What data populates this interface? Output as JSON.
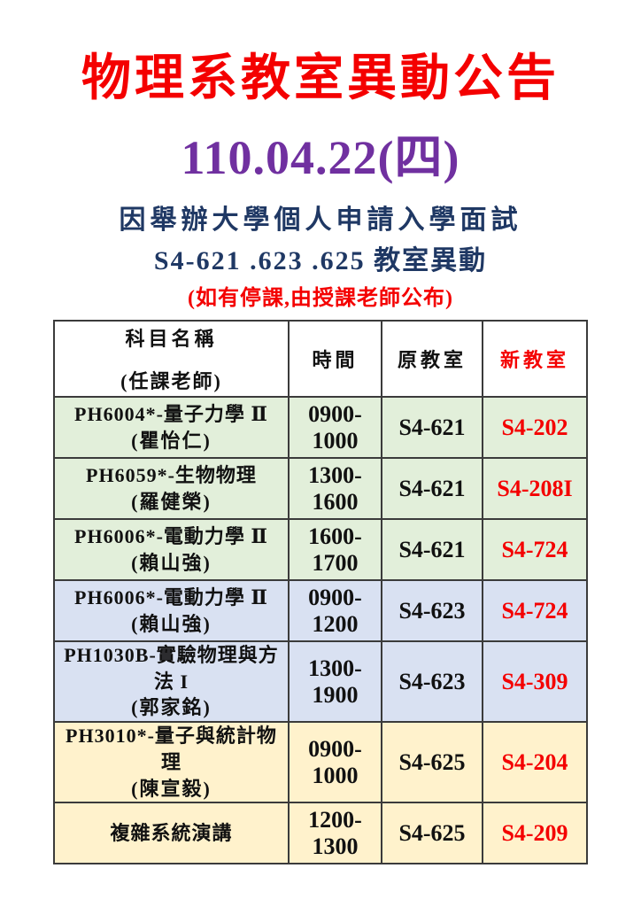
{
  "page": {
    "title": "物理系教室異動公告",
    "date": "110.04.22(四)",
    "subtitle_line1": "因舉辦大學個人申請入學面試",
    "subtitle_line2": "S4-621 .623 .625 教室異動",
    "subtitle_note": "(如有停課,由授課老師公布)"
  },
  "colors": {
    "title_red": "#f40000",
    "date_purple": "#7030a0",
    "subtitle_blue": "#1f3864",
    "note_red": "#f40000",
    "new_room_red": "#f40000",
    "row_green": "#e2efda",
    "row_blue": "#d9e1f2",
    "row_yellow": "#fff2cc",
    "table_border": "#3b3b3b"
  },
  "table": {
    "headers": {
      "subject_line1": "科目名稱",
      "subject_line2": "(任課老師)",
      "time": "時間",
      "original_room": "原教室",
      "new_room": "新教室"
    },
    "rows": [
      {
        "course": "PH6004*-量子力學 Ⅱ",
        "teacher": "(瞿怡仁)",
        "time": "0900-1000",
        "original": "S4-621",
        "new": "S4-202",
        "color": "green"
      },
      {
        "course": "PH6059*-生物物理",
        "teacher": "(羅健榮)",
        "time": "1300-1600",
        "original": "S4-621",
        "new": "S4-208I",
        "color": "green"
      },
      {
        "course": "PH6006*-電動力學 Ⅱ",
        "teacher": "(賴山強)",
        "time": "1600-1700",
        "original": "S4-621",
        "new": "S4-724",
        "color": "green"
      },
      {
        "course": "PH6006*-電動力學 Ⅱ",
        "teacher": "(賴山強)",
        "time": "0900-1200",
        "original": "S4-623",
        "new": "S4-724",
        "color": "blue"
      },
      {
        "course": "PH1030B-實驗物理與方法 I",
        "teacher": "(郭家銘)",
        "time": "1300-1900",
        "original": "S4-623",
        "new": "S4-309",
        "color": "blue"
      },
      {
        "course": "PH3010*-量子與統計物理",
        "teacher": "(陳宣毅)",
        "time": "0900-1000",
        "original": "S4-625",
        "new": "S4-204",
        "color": "yellow"
      },
      {
        "course": "複雜系統演講",
        "teacher": "",
        "time": "1200-1300",
        "original": "S4-625",
        "new": "S4-209",
        "color": "yellow"
      }
    ]
  }
}
